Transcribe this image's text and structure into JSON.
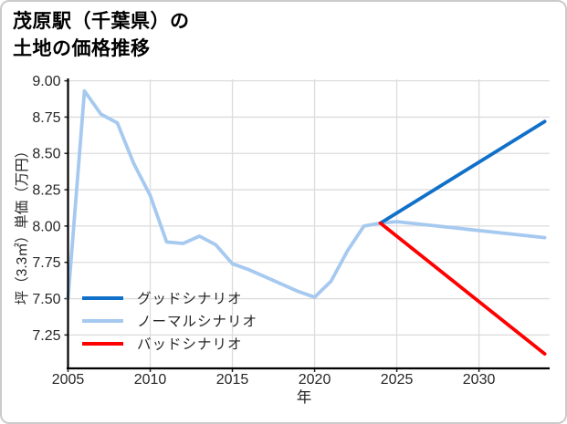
{
  "figure": {
    "title_line1": "茂原駅（千葉県）の",
    "title_line2": "土地の価格推移",
    "background": "#ffffff",
    "border_color": "#cbcbcb"
  },
  "chart_data": {
    "type": "line",
    "title": "茂原駅（千葉県）の土地の価格推移",
    "xlabel": "年",
    "ylabel": "坪（3.3㎡）単価（万円）",
    "xlim": [
      2005,
      2034.3
    ],
    "ylim": [
      7.02,
      9.01
    ],
    "xticks": [
      2005,
      2010,
      2015,
      2020,
      2025,
      2030
    ],
    "yticks": [
      7.25,
      7.5,
      7.75,
      8.0,
      8.25,
      8.5,
      8.75,
      9.0
    ],
    "ytick_labels": [
      "7.25",
      "7.50",
      "7.75",
      "8.00",
      "8.25",
      "8.50",
      "8.75",
      "9.00"
    ],
    "grid": true,
    "grid_color": "#dcdcdc",
    "axis_color": "#000000",
    "tick_text_color": "#262626",
    "legend_position": "lower-left",
    "series": [
      {
        "name": "グッドシナリオ",
        "key": "good-scenario",
        "color": "#1170c9",
        "zorder": 2,
        "x": [
          2024,
          2034
        ],
        "y": [
          8.02,
          8.72
        ]
      },
      {
        "name": "ノーマルシナリオ",
        "key": "normal-scenario",
        "color": "#a6c9f0",
        "zorder": 1,
        "x": [
          2005,
          2006,
          2007,
          2008,
          2009,
          2010,
          2011,
          2012,
          2013,
          2014,
          2015,
          2016,
          2017,
          2018,
          2019,
          2020,
          2021,
          2022,
          2023,
          2024,
          2025,
          2034
        ],
        "y": [
          7.5,
          8.93,
          8.77,
          8.71,
          8.43,
          8.21,
          7.89,
          7.88,
          7.93,
          7.87,
          7.74,
          7.7,
          7.65,
          7.6,
          7.55,
          7.51,
          7.62,
          7.83,
          8.0,
          8.02,
          8.03,
          7.92
        ]
      },
      {
        "name": "バッドシナリオ",
        "key": "bad-scenario",
        "color": "#ff0000",
        "zorder": 3,
        "x": [
          2024,
          2034
        ],
        "y": [
          8.02,
          7.12
        ]
      }
    ]
  }
}
